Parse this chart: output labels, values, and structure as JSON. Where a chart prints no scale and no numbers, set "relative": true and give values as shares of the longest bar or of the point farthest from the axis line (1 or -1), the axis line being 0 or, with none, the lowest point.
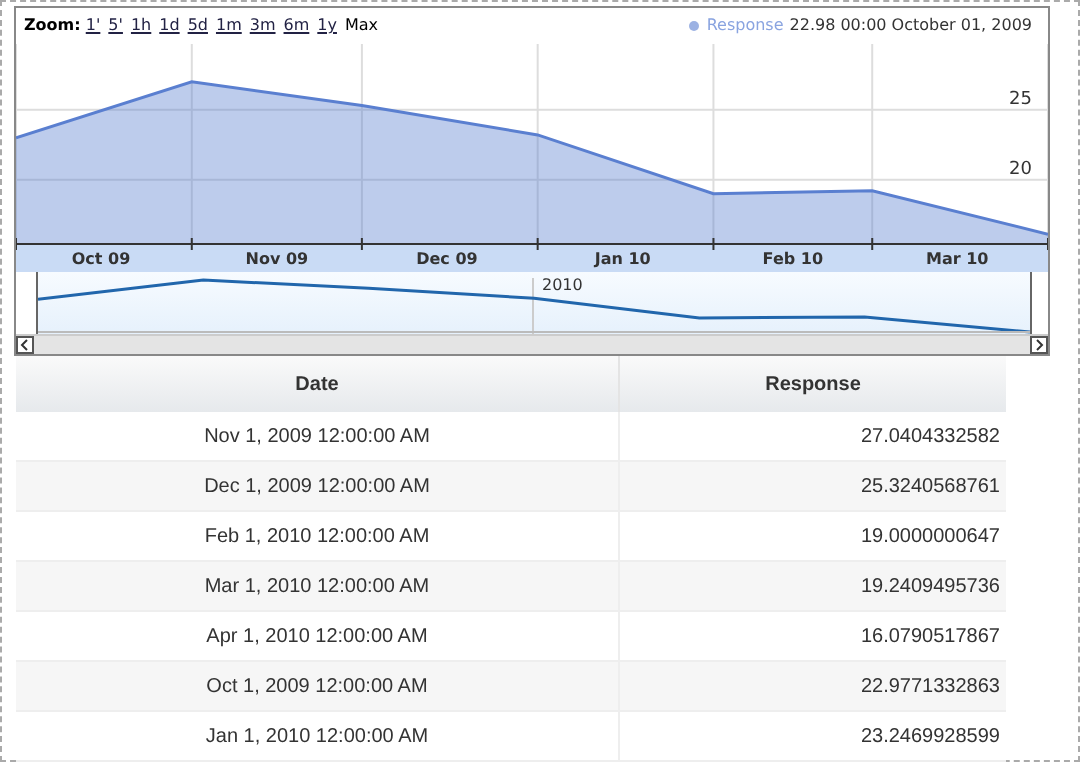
{
  "chart_data": [
    {
      "type": "area",
      "annotations": [
        "Zoom:",
        "1'",
        "5'",
        "1h",
        "1d",
        "5d",
        "1m",
        "3m",
        "6m",
        "1y",
        "Max",
        "22.98 00:00 October 01, 2009"
      ],
      "x": [
        "2009-10-01",
        "2009-11-01",
        "2009-12-01",
        "2010-01-01",
        "2010-02-01",
        "2010-03-01",
        "2010-04-01"
      ],
      "series": [
        {
          "name": "Response",
          "color": "#5a7fd0",
          "values": [
            23.0,
            27.0,
            25.3,
            23.2,
            19.0,
            19.2,
            16.1
          ]
        }
      ],
      "xlim": [
        "2009-10-01",
        "2010-04-01"
      ],
      "xticks": [
        {
          "value": "2009-10-01",
          "label": null
        },
        {
          "value": "2009-10-16",
          "label": "Oct 09"
        },
        {
          "value": "2009-11-01",
          "label": null
        },
        {
          "value": "2009-11-16",
          "label": "Nov 09"
        },
        {
          "value": "2009-12-01",
          "label": null
        },
        {
          "value": "2009-12-16",
          "label": "Dec 09"
        },
        {
          "value": "2010-01-01",
          "label": null
        },
        {
          "value": "2010-01-16",
          "label": "Jan 10"
        },
        {
          "value": "2010-02-01",
          "label": null
        },
        {
          "value": "2010-02-15",
          "label": "Feb 10"
        },
        {
          "value": "2010-03-01",
          "label": null
        },
        {
          "value": "2010-03-16",
          "label": "Mar 10"
        },
        {
          "value": "2010-04-01",
          "label": null
        }
      ],
      "ylim": [
        15.4,
        29.7
      ],
      "yticks": [
        20,
        25
      ],
      "grid": true,
      "legend": "top right"
    },
    {
      "type": "line",
      "relative": true,
      "annotations": [
        "2010"
      ],
      "categories": [
        null,
        null,
        null,
        null,
        null,
        null,
        null
      ],
      "series": [
        {
          "color": "#2166ac",
          "values": [
            0.63,
            1,
            0.84,
            0.65,
            0.27,
            0.29,
            0
          ]
        }
      ]
    },
    {
      "type": "other",
      "annotations": [
        "Date"
      ],
      "categories": [
        "Nov 1, 2009 12:00:00 AM",
        "Dec 1, 2009 12:00:00 AM",
        "Feb 1, 2010 12:00:00 AM",
        "Mar 1, 2010 12:00:00 AM",
        "Apr 1, 2010 12:00:00 AM",
        "Oct 1, 2009 12:00:00 AM",
        "Jan 1, 2010 12:00:00 AM"
      ],
      "series": [
        {
          "name": "Response",
          "values": [
            27.0404332582,
            25.3240568761,
            19.0000000647,
            19.2409495736,
            16.0790517867,
            22.9771332863,
            23.2469928599
          ]
        }
      ],
      "data_labels": true
    }
  ]
}
